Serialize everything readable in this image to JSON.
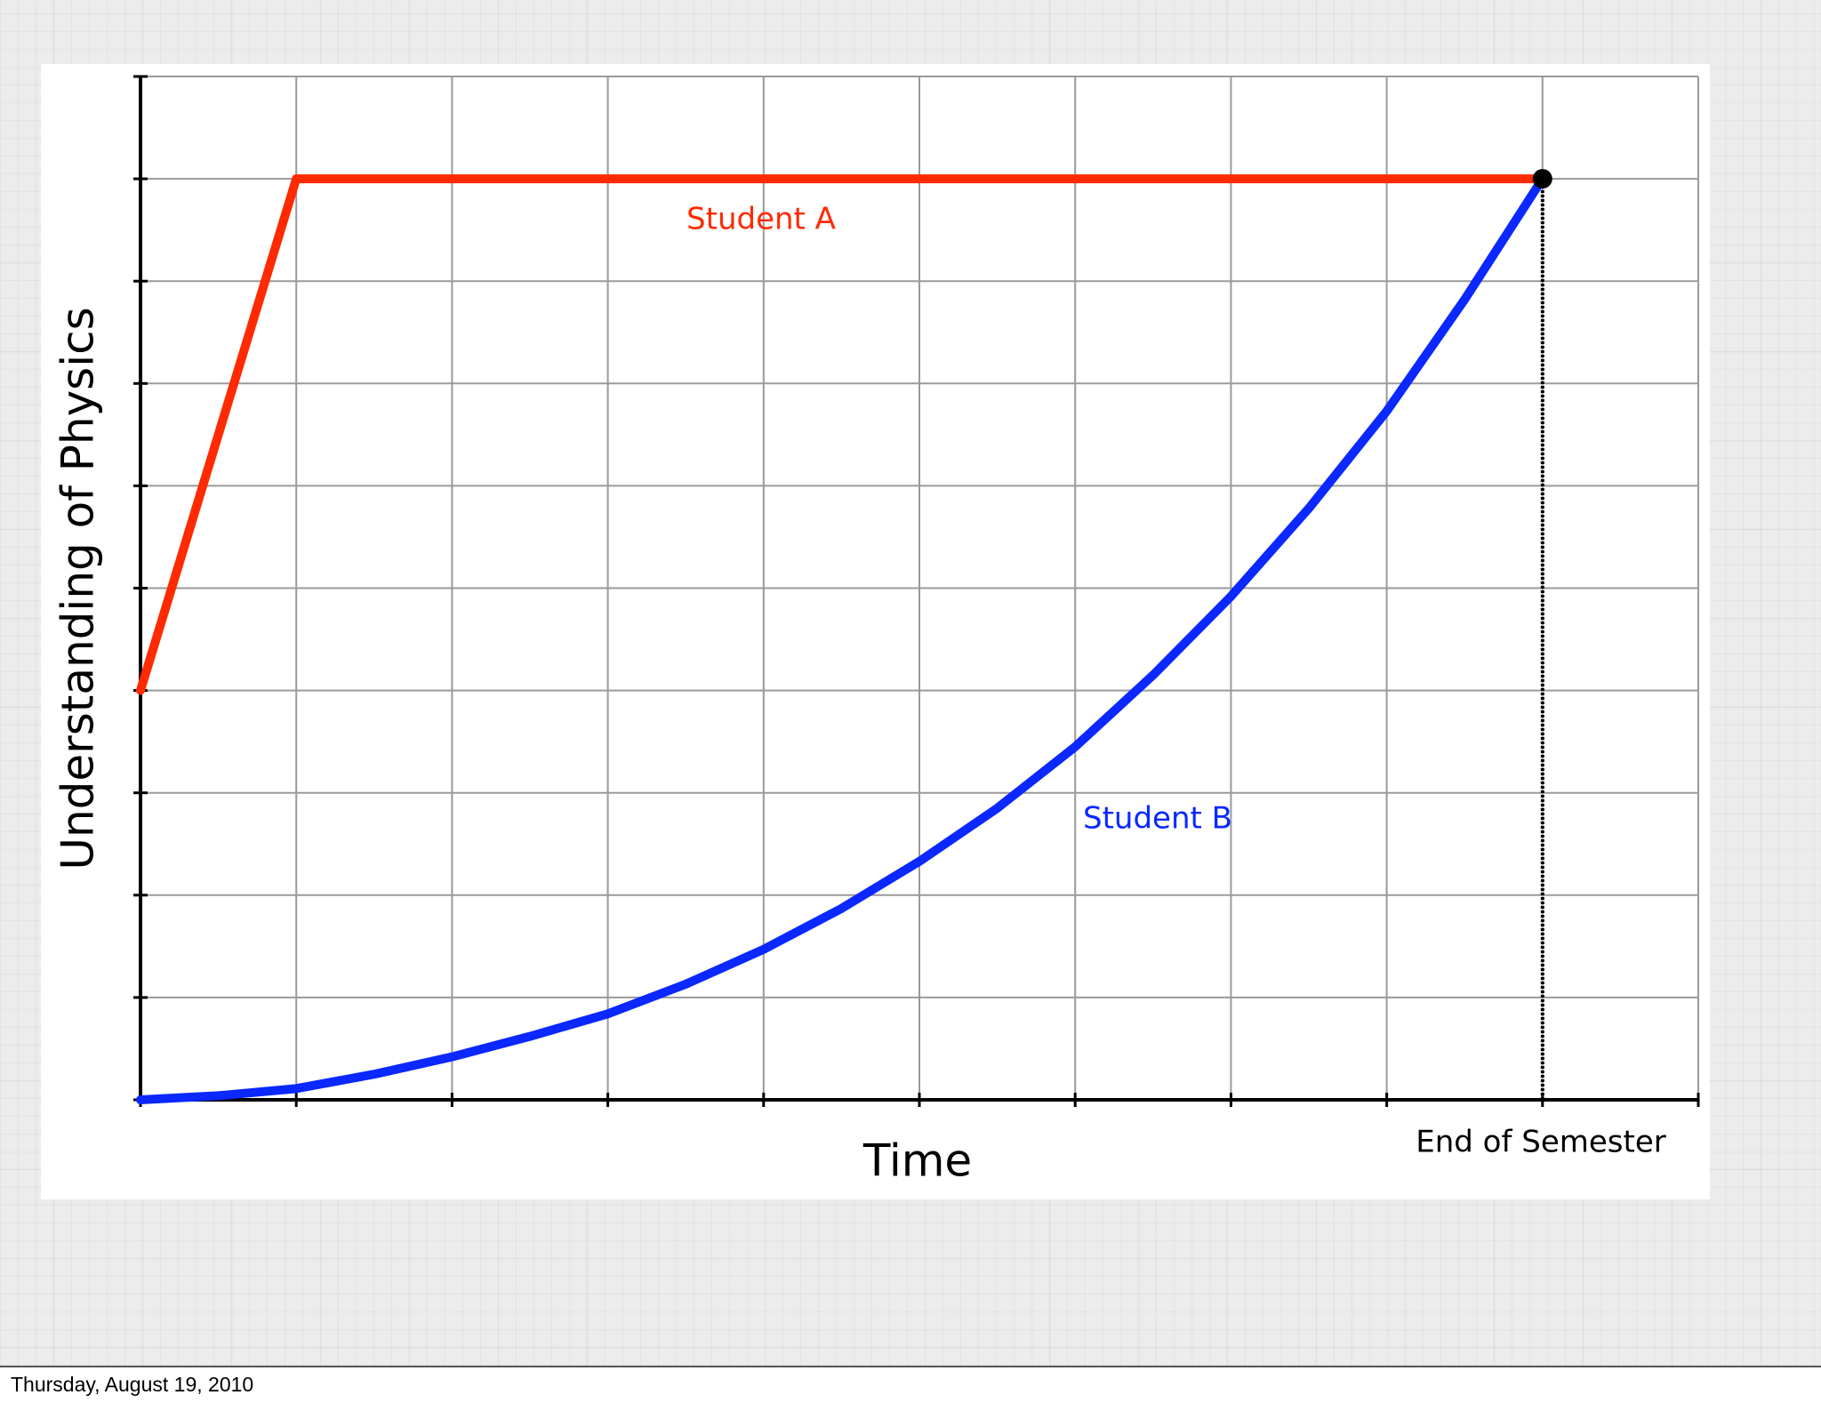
{
  "chart_data": {
    "type": "line",
    "x_label": "Time",
    "y_label": "Understanding of Physics",
    "xlim": [
      0,
      10
    ],
    "ylim": [
      0,
      10
    ],
    "xticks": [
      0,
      1,
      2,
      3,
      4,
      5,
      6,
      7,
      8,
      9,
      10
    ],
    "yticks": [
      0,
      1,
      2,
      3,
      4,
      5,
      6,
      7,
      8,
      9,
      10
    ],
    "grid": true,
    "series": [
      {
        "name": "Student A",
        "color": "#ff2a00",
        "x": [
          0,
          1,
          9
        ],
        "values": [
          4,
          9,
          9
        ]
      },
      {
        "name": "Student B",
        "color": "#0a28ff",
        "x": [
          0,
          0.5,
          1,
          1.5,
          2,
          2.5,
          3,
          3.5,
          4,
          4.5,
          5,
          5.5,
          6,
          6.5,
          7,
          7.5,
          8,
          8.5,
          9
        ],
        "values": [
          0,
          0.04,
          0.11,
          0.25,
          0.42,
          0.62,
          0.84,
          1.13,
          1.47,
          1.87,
          2.33,
          2.85,
          3.45,
          4.15,
          4.92,
          5.78,
          6.73,
          7.82,
          9
        ]
      }
    ],
    "marker": {
      "x": 9,
      "y": 9,
      "label": "End of Semester"
    }
  },
  "footer": "Thursday, August 19, 2010"
}
